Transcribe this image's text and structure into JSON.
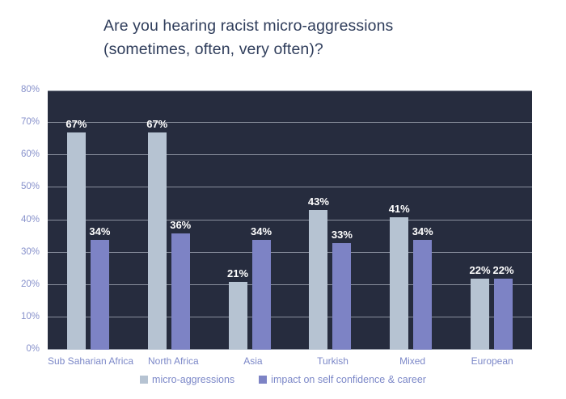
{
  "page": {
    "background": "#ffffff"
  },
  "chart_title": {
    "line1": "Are you hearing racist micro-aggressions",
    "line2": "(sometimes, often, very often)?"
  },
  "chart_data": {
    "type": "bar",
    "title": "Are you hearing racist micro-aggressions (sometimes, often, very often)?",
    "categories": [
      "Sub Saharian Africa",
      "North Africa",
      "Asia",
      "Turkish",
      "Mixed",
      "European"
    ],
    "series": [
      {
        "name": "micro-aggressions",
        "color": "#b6c3d2",
        "values": [
          67,
          67,
          21,
          43,
          41,
          22
        ]
      },
      {
        "name": "impact on self confidence & career",
        "color": "#7d83c5",
        "values": [
          34,
          36,
          34,
          33,
          34,
          22
        ]
      }
    ],
    "ylim": [
      0,
      80
    ],
    "ytick_labels": [
      "0%",
      "10%",
      "20%",
      "30%",
      "40%",
      "50%",
      "60%",
      "70%",
      "80%"
    ],
    "value_suffix": "%",
    "grid": true,
    "legend_position": "bottom",
    "data_labels": true
  },
  "colors": {
    "plot_background": "#262c3e",
    "gridline": "#9ba1ae",
    "title_text": "#2f3d5b",
    "y_axis_label": "#8791cb",
    "x_axis_label": "#7c88c8",
    "legend_text": "#7c88c8",
    "data_label": "#ffffff"
  }
}
